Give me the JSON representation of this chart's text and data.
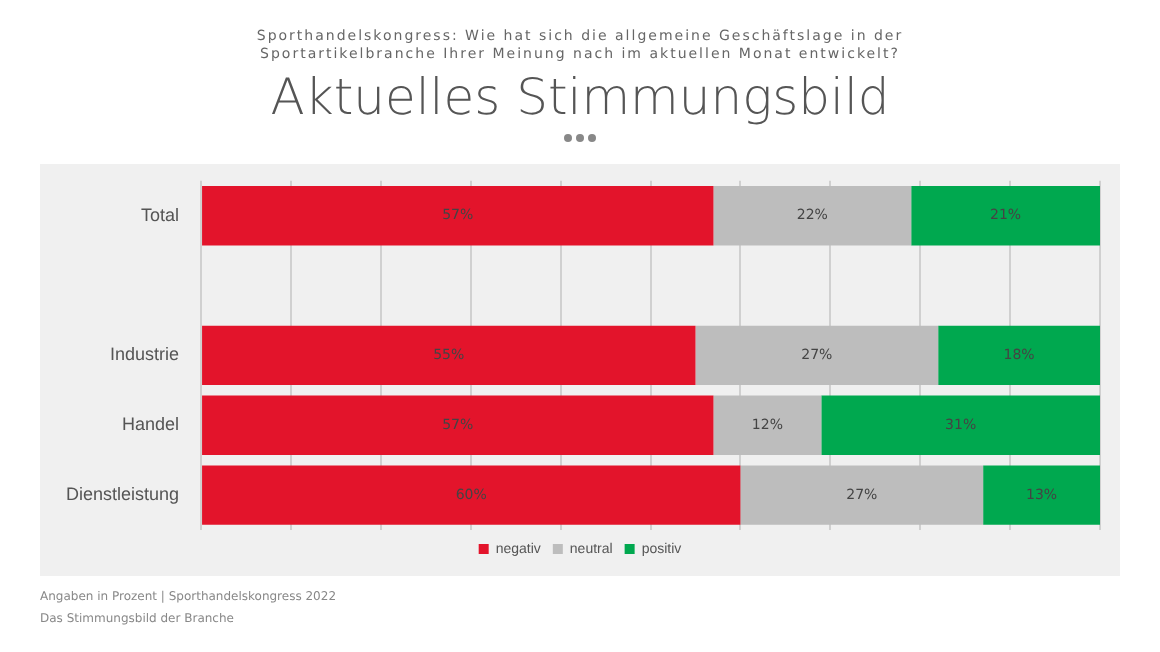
{
  "chart_data": {
    "type": "bar",
    "orientation": "horizontal",
    "stacked": true,
    "title": "Aktuelles Stimmungsbild",
    "subtitle": "Sporthandelskongress: Wie hat sich die allgemeine Geschäftslage in der Sportartikelbranche Ihrer Meinung nach im aktuellen Monat entwickelt?",
    "categories": [
      "Total",
      null,
      "Industrie",
      "Handel",
      "Dienstleistung"
    ],
    "series": [
      {
        "name": "negativ",
        "color": "#e3142b",
        "values": [
          57,
          null,
          55,
          57,
          60
        ],
        "value_labels": [
          "57%",
          null,
          "55%",
          "57%",
          "60%"
        ]
      },
      {
        "name": "neutral",
        "color": "#bdbdbd",
        "values": [
          22,
          null,
          27,
          12,
          27
        ],
        "value_labels": [
          "22%",
          null,
          "27%",
          "12%",
          "27%"
        ]
      },
      {
        "name": "positiv",
        "color": "#00a84f",
        "values": [
          21,
          null,
          18,
          31,
          13
        ],
        "value_labels": [
          "21%",
          null,
          "18%",
          "31%",
          "13%"
        ]
      }
    ],
    "tick_labels": "y",
    "grid": "x",
    "legend": "bottom",
    "annotations": [
      "Angaben in Prozent | Sporthandelskongress 2022",
      "Das Stimmungsbild der Branche"
    ]
  }
}
